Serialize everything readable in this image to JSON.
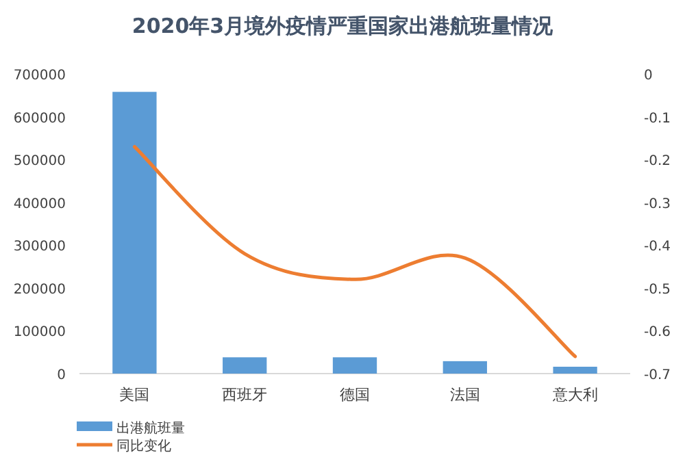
{
  "chart_data": {
    "type": "bar",
    "title": "2020年3月境外疫情严重国家出港航班量情况",
    "categories": [
      "美国",
      "西班牙",
      "德国",
      "法国",
      "意大利"
    ],
    "series": [
      {
        "name": "出港航班量",
        "color": "#5b9bd5",
        "values": [
          658000,
          38000,
          38000,
          29000,
          16000
        ]
      },
      {
        "name": "同比变化",
        "type": "line",
        "axis": "y2",
        "color": "#ed7d31",
        "values": [
          -0.17,
          -0.42,
          -0.48,
          -0.43,
          -0.66
        ]
      }
    ],
    "ylim": [
      0,
      700000
    ],
    "yticks": [
      0,
      100000,
      200000,
      300000,
      400000,
      500000,
      600000,
      700000
    ],
    "y2lim": [
      -0.7,
      0
    ],
    "y2ticks": [
      0,
      -0.1,
      -0.2,
      -0.3,
      -0.4,
      -0.5,
      -0.6,
      -0.7
    ],
    "grid": false,
    "legend": "bottom left",
    "marker": "none",
    "line_style": "solid"
  }
}
